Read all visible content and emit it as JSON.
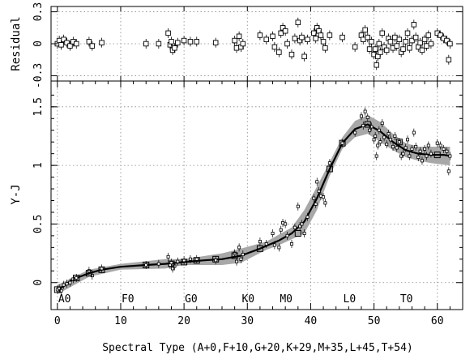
{
  "chart_data": [
    {
      "panel": "residual",
      "type": "scatter",
      "ylabel": "Residual",
      "xlim": [
        -1,
        64
      ],
      "ylim": [
        -0.35,
        0.35
      ],
      "yticks": [
        -0.3,
        0,
        0.3
      ],
      "ytick_labels": [
        "-0.3",
        "0",
        "0.3"
      ],
      "points": [
        {
          "x": 0,
          "y": 0.0
        },
        {
          "x": 0.3,
          "y": 0.03
        },
        {
          "x": 0.6,
          "y": -0.01
        },
        {
          "x": 1,
          "y": 0.04
        },
        {
          "x": 1.5,
          "y": 0.01
        },
        {
          "x": 2,
          "y": -0.02
        },
        {
          "x": 2.5,
          "y": 0.02
        },
        {
          "x": 3,
          "y": 0.0
        },
        {
          "x": 5,
          "y": 0.02
        },
        {
          "x": 5.5,
          "y": -0.02
        },
        {
          "x": 7,
          "y": 0.01
        },
        {
          "x": 14,
          "y": 0.0
        },
        {
          "x": 16,
          "y": 0.0
        },
        {
          "x": 17.5,
          "y": 0.1
        },
        {
          "x": 17.8,
          "y": -0.01
        },
        {
          "x": 18,
          "y": 0.02
        },
        {
          "x": 18.2,
          "y": -0.06
        },
        {
          "x": 18.5,
          "y": -0.04
        },
        {
          "x": 19,
          "y": 0.01
        },
        {
          "x": 20,
          "y": 0.03
        },
        {
          "x": 21,
          "y": 0.02
        },
        {
          "x": 22,
          "y": 0.02
        },
        {
          "x": 25,
          "y": 0.01
        },
        {
          "x": 28,
          "y": 0.03
        },
        {
          "x": 28.3,
          "y": -0.04
        },
        {
          "x": 28.7,
          "y": 0.07
        },
        {
          "x": 29,
          "y": -0.03
        },
        {
          "x": 29.3,
          "y": 0.0
        },
        {
          "x": 32,
          "y": 0.08
        },
        {
          "x": 33,
          "y": 0.04
        },
        {
          "x": 34,
          "y": 0.07
        },
        {
          "x": 34.3,
          "y": -0.03
        },
        {
          "x": 35,
          "y": -0.08
        },
        {
          "x": 35.3,
          "y": 0.1
        },
        {
          "x": 35.6,
          "y": 0.15
        },
        {
          "x": 36,
          "y": 0.12
        },
        {
          "x": 36.3,
          "y": 0.0
        },
        {
          "x": 37,
          "y": -0.1
        },
        {
          "x": 37.5,
          "y": 0.05
        },
        {
          "x": 38,
          "y": 0.2
        },
        {
          "x": 38.3,
          "y": 0.03
        },
        {
          "x": 38.6,
          "y": 0.06
        },
        {
          "x": 39,
          "y": -0.12
        },
        {
          "x": 39.5,
          "y": 0.04
        },
        {
          "x": 40.5,
          "y": 0.1
        },
        {
          "x": 40.8,
          "y": 0.05
        },
        {
          "x": 41,
          "y": 0.15
        },
        {
          "x": 41.3,
          "y": 0.12
        },
        {
          "x": 41.6,
          "y": 0.08
        },
        {
          "x": 42,
          "y": 0.02
        },
        {
          "x": 42.3,
          "y": -0.04
        },
        {
          "x": 43,
          "y": 0.08
        },
        {
          "x": 45,
          "y": 0.06
        },
        {
          "x": 47,
          "y": -0.03
        },
        {
          "x": 48,
          "y": 0.08
        },
        {
          "x": 48.3,
          "y": 0.04
        },
        {
          "x": 48.6,
          "y": 0.13
        },
        {
          "x": 49,
          "y": 0.06
        },
        {
          "x": 49.3,
          "y": -0.05
        },
        {
          "x": 49.6,
          "y": 0.02
        },
        {
          "x": 50,
          "y": -0.1
        },
        {
          "x": 50.2,
          "y": -0.05
        },
        {
          "x": 50.4,
          "y": -0.2
        },
        {
          "x": 50.6,
          "y": -0.12
        },
        {
          "x": 50.8,
          "y": 0.0
        },
        {
          "x": 51,
          "y": -0.08
        },
        {
          "x": 51.3,
          "y": 0.1
        },
        {
          "x": 51.6,
          "y": -0.03
        },
        {
          "x": 52,
          "y": -0.06
        },
        {
          "x": 52.3,
          "y": 0.05
        },
        {
          "x": 52.6,
          "y": 0.02
        },
        {
          "x": 53,
          "y": -0.04
        },
        {
          "x": 53.3,
          "y": 0.06
        },
        {
          "x": 53.6,
          "y": -0.02
        },
        {
          "x": 54,
          "y": 0.04
        },
        {
          "x": 54.3,
          "y": -0.08
        },
        {
          "x": 54.6,
          "y": -0.05
        },
        {
          "x": 55,
          "y": 0.02
        },
        {
          "x": 55.3,
          "y": 0.1
        },
        {
          "x": 55.6,
          "y": -0.04
        },
        {
          "x": 56,
          "y": 0.03
        },
        {
          "x": 56.3,
          "y": 0.18
        },
        {
          "x": 56.6,
          "y": 0.06
        },
        {
          "x": 57,
          "y": -0.03
        },
        {
          "x": 57.3,
          "y": 0.01
        },
        {
          "x": 57.6,
          "y": -0.06
        },
        {
          "x": 58,
          "y": 0.04
        },
        {
          "x": 58.3,
          "y": -0.02
        },
        {
          "x": 58.6,
          "y": 0.08
        },
        {
          "x": 59,
          "y": 0.0
        },
        {
          "x": 60,
          "y": 0.1
        },
        {
          "x": 60.5,
          "y": 0.08
        },
        {
          "x": 61,
          "y": 0.05
        },
        {
          "x": 61.5,
          "y": 0.03
        },
        {
          "x": 61.8,
          "y": -0.15
        },
        {
          "x": 62,
          "y": 0.0
        }
      ]
    },
    {
      "panel": "main",
      "type": "line",
      "ylabel": "Y-J",
      "xlabel": "Spectral Type (A+0,F+10,G+20,K+29,M+35,L+45,T+54)",
      "xlim": [
        -1,
        64
      ],
      "ylim": [
        -0.23,
        1.72
      ],
      "xticks": [
        0,
        10,
        20,
        30,
        40,
        50,
        60
      ],
      "yticks": [
        0,
        0.5,
        1,
        1.5
      ],
      "ytick_labels": [
        "0",
        "0.5",
        "1",
        "1.5"
      ],
      "spectral_labels": [
        {
          "text": "A0",
          "x": 0
        },
        {
          "text": "F0",
          "x": 10
        },
        {
          "text": "G0",
          "x": 20
        },
        {
          "text": "K0",
          "x": 29
        },
        {
          "text": "M0",
          "x": 35
        },
        {
          "text": "L0",
          "x": 45
        },
        {
          "text": "T0",
          "x": 54
        }
      ],
      "series": [
        {
          "values": [
            [
              0,
              -0.06
            ],
            [
              1,
              -0.03
            ],
            [
              2,
              0.01
            ],
            [
              3,
              0.04
            ],
            [
              5,
              0.08
            ],
            [
              7,
              0.11
            ],
            [
              10,
              0.135
            ],
            [
              14,
              0.15
            ],
            [
              17,
              0.16
            ],
            [
              20,
              0.175
            ],
            [
              23,
              0.19
            ],
            [
              26,
              0.2
            ],
            [
              29,
              0.23
            ],
            [
              32,
              0.29
            ],
            [
              35,
              0.36
            ],
            [
              37,
              0.42
            ],
            [
              39,
              0.52
            ],
            [
              41,
              0.72
            ],
            [
              43,
              0.97
            ],
            [
              45,
              1.19
            ],
            [
              47,
              1.31
            ],
            [
              49,
              1.35
            ],
            [
              51,
              1.29
            ],
            [
              53,
              1.2
            ],
            [
              55,
              1.13
            ],
            [
              57,
              1.1
            ],
            [
              59,
              1.09
            ],
            [
              61,
              1.09
            ],
            [
              62,
              1.08
            ]
          ],
          "band": [
            [
              0,
              -0.1,
              -0.02
            ],
            [
              5,
              0.05,
              0.11
            ],
            [
              10,
              0.11,
              0.16
            ],
            [
              17,
              0.12,
              0.2
            ],
            [
              20,
              0.15,
              0.2
            ],
            [
              26,
              0.15,
              0.25
            ],
            [
              29,
              0.17,
              0.29
            ],
            [
              33,
              0.28,
              0.35
            ],
            [
              35,
              0.32,
              0.41
            ],
            [
              37,
              0.37,
              0.47
            ],
            [
              39,
              0.42,
              0.62
            ],
            [
              41,
              0.62,
              0.82
            ],
            [
              43,
              0.91,
              1.03
            ],
            [
              45,
              1.14,
              1.24
            ],
            [
              47,
              1.24,
              1.38
            ],
            [
              49,
              1.27,
              1.43
            ],
            [
              51,
              1.2,
              1.37
            ],
            [
              53,
              1.13,
              1.27
            ],
            [
              55,
              1.07,
              1.19
            ],
            [
              57,
              1.04,
              1.16
            ],
            [
              59,
              1.02,
              1.16
            ],
            [
              62,
              1.0,
              1.16
            ]
          ],
          "points": [
            [
              0,
              -0.06
            ],
            [
              0.3,
              -0.05
            ],
            [
              0.6,
              -0.07
            ],
            [
              1,
              -0.02
            ],
            [
              1.5,
              -0.01
            ],
            [
              2,
              0.0
            ],
            [
              2.5,
              0.03
            ],
            [
              3,
              0.04
            ],
            [
              5,
              0.1
            ],
            [
              5.5,
              0.06
            ],
            [
              7,
              0.12
            ],
            [
              14,
              0.15
            ],
            [
              16,
              0.16
            ],
            [
              17.5,
              0.22
            ],
            [
              17.8,
              0.15
            ],
            [
              18,
              0.17
            ],
            [
              18.2,
              0.12
            ],
            [
              18.5,
              0.14
            ],
            [
              19,
              0.18
            ],
            [
              20,
              0.19
            ],
            [
              21,
              0.2
            ],
            [
              22,
              0.2
            ],
            [
              25,
              0.19
            ],
            [
              28,
              0.25
            ],
            [
              28.3,
              0.18
            ],
            [
              28.7,
              0.3
            ],
            [
              29,
              0.2
            ],
            [
              29.3,
              0.24
            ],
            [
              32,
              0.35
            ],
            [
              33,
              0.33
            ],
            [
              34,
              0.42
            ],
            [
              34.3,
              0.32
            ],
            [
              35,
              0.3
            ],
            [
              35.3,
              0.45
            ],
            [
              35.6,
              0.51
            ],
            [
              36,
              0.5
            ],
            [
              36.3,
              0.4
            ],
            [
              37,
              0.33
            ],
            [
              37.5,
              0.47
            ],
            [
              38,
              0.65
            ],
            [
              38.3,
              0.48
            ],
            [
              38.6,
              0.5
            ],
            [
              39,
              0.42
            ],
            [
              39.5,
              0.56
            ],
            [
              40.5,
              0.72
            ],
            [
              40.8,
              0.67
            ],
            [
              41,
              0.86
            ],
            [
              41.3,
              0.78
            ],
            [
              41.6,
              0.74
            ],
            [
              42,
              0.73
            ],
            [
              42.3,
              0.68
            ],
            [
              43,
              1.02
            ],
            [
              45,
              1.19
            ],
            [
              47,
              1.28
            ],
            [
              48,
              1.42
            ],
            [
              48.3,
              1.34
            ],
            [
              48.6,
              1.46
            ],
            [
              49,
              1.41
            ],
            [
              49.3,
              1.3
            ],
            [
              49.6,
              1.33
            ],
            [
              50,
              1.22
            ],
            [
              50.2,
              1.25
            ],
            [
              50.4,
              1.08
            ],
            [
              50.6,
              1.17
            ],
            [
              50.8,
              1.3
            ],
            [
              51,
              1.2
            ],
            [
              51.3,
              1.36
            ],
            [
              51.6,
              1.24
            ],
            [
              52,
              1.18
            ],
            [
              52.3,
              1.27
            ],
            [
              52.6,
              1.22
            ],
            [
              53,
              1.16
            ],
            [
              53.3,
              1.25
            ],
            [
              53.6,
              1.15
            ],
            [
              54,
              1.2
            ],
            [
              54.3,
              1.08
            ],
            [
              54.6,
              1.1
            ],
            [
              55,
              1.15
            ],
            [
              55.3,
              1.22
            ],
            [
              55.6,
              1.08
            ],
            [
              56,
              1.14
            ],
            [
              56.3,
              1.28
            ],
            [
              56.6,
              1.16
            ],
            [
              57,
              1.07
            ],
            [
              57.3,
              1.12
            ],
            [
              57.6,
              1.04
            ],
            [
              58,
              1.14
            ],
            [
              58.3,
              1.08
            ],
            [
              58.6,
              1.17
            ],
            [
              59,
              1.1
            ],
            [
              60,
              1.19
            ],
            [
              60.5,
              1.17
            ],
            [
              61,
              1.14
            ],
            [
              61.5,
              1.12
            ],
            [
              61.8,
              0.95
            ],
            [
              62,
              1.08
            ]
          ]
        }
      ]
    }
  ]
}
